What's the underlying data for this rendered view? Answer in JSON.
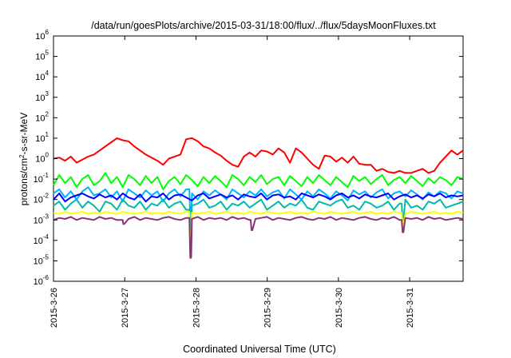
{
  "chart_data": {
    "type": "line",
    "title": "/data/run/goesPlots/archive/2015-03-31/18:00/flux/../flux/5daysMoonFluxes.txt",
    "xlabel": "Coordinated Universal Time (UTC)",
    "ylabel": {
      "pre": "protons/cm",
      "sup": "2",
      "post": "-s-sr-MeV"
    },
    "y_scale": "log",
    "ylim_exp": [
      -6,
      6
    ],
    "y_ticks": [
      {
        "base": "10",
        "exp": "-6"
      },
      {
        "base": "10",
        "exp": "-5"
      },
      {
        "base": "10",
        "exp": "-4"
      },
      {
        "base": "10",
        "exp": "-3"
      },
      {
        "base": "10",
        "exp": "-2"
      },
      {
        "base": "10",
        "exp": "-1"
      },
      {
        "base": "10",
        "exp": "0"
      },
      {
        "base": "10",
        "exp": "1"
      },
      {
        "base": "10",
        "exp": "2"
      },
      {
        "base": "10",
        "exp": "3"
      },
      {
        "base": "10",
        "exp": "4"
      },
      {
        "base": "10",
        "exp": "5"
      },
      {
        "base": "10",
        "exp": "6"
      }
    ],
    "x_ticks": [
      "2015-3-26",
      "2015-3-27",
      "2015-3-28",
      "2015-3-29",
      "2015-3-30",
      "2015-3-31"
    ],
    "xlim_days": [
      0,
      5.75
    ],
    "grid": false,
    "series": [
      {
        "color": "#ff0000",
        "log_values": [
          0.0,
          0.05,
          -0.1,
          0.1,
          -0.2,
          -0.05,
          0.1,
          0.2,
          0.4,
          0.6,
          0.8,
          1.0,
          0.9,
          0.85,
          0.6,
          0.4,
          0.2,
          0.05,
          -0.1,
          -0.3,
          0.0,
          0.1,
          0.2,
          0.95,
          1.0,
          0.85,
          0.6,
          0.5,
          0.3,
          0.15,
          -0.1,
          -0.3,
          -0.4,
          0.1,
          0.3,
          0.1,
          0.4,
          0.35,
          0.2,
          0.5,
          0.3,
          -0.2,
          0.5,
          0.3,
          0.0,
          -0.3,
          -0.5,
          0.15,
          0.1,
          -0.15,
          0.05,
          -0.2,
          0.1,
          -0.25,
          -0.3,
          -0.3,
          -0.6,
          -0.5,
          -0.65,
          -0.7,
          -0.6,
          -0.7,
          -0.7,
          -0.6,
          -0.5,
          -0.7,
          -0.6,
          -0.2,
          0.1,
          0.4,
          0.2,
          0.4
        ]
      },
      {
        "color": "#00ff00",
        "log_values": [
          -1.3,
          -0.8,
          -1.2,
          -0.9,
          -1.4,
          -1.0,
          -0.8,
          -1.3,
          -1.1,
          -0.7,
          -1.2,
          -0.9,
          -1.4,
          -0.8,
          -1.0,
          -1.3,
          -0.85,
          -1.2,
          -0.9,
          -1.5,
          -1.1,
          -0.9,
          -1.25,
          -0.8,
          -1.05,
          -1.35,
          -0.9,
          -1.2,
          -0.85,
          -1.1,
          -1.4,
          -0.8,
          -1.0,
          -1.3,
          -0.9,
          -1.15,
          -0.8,
          -1.25,
          -1.0,
          -0.9,
          -1.3,
          -0.85,
          -1.1,
          -1.35,
          -0.9,
          -1.2,
          -0.8,
          -1.05,
          -1.3,
          -0.9,
          -1.15,
          -1.4,
          -0.85,
          -1.1,
          -0.9,
          -1.25,
          -1.0,
          -0.8,
          -1.3,
          -1.05,
          -0.9,
          -1.2,
          -0.85,
          -1.1,
          -1.35,
          -0.95,
          -1.2,
          -0.9,
          -1.05,
          -1.3,
          -0.9,
          -1.0
        ]
      },
      {
        "color": "#00b4ff",
        "log_values": [
          -1.7,
          -1.5,
          -1.9,
          -1.6,
          -2.0,
          -1.6,
          -1.4,
          -1.8,
          -1.7,
          -1.5,
          -1.9,
          -1.6,
          -2.1,
          -1.5,
          -1.7,
          -1.9,
          -1.55,
          -1.8,
          -1.6,
          -2.1,
          -1.7,
          -1.5,
          -1.85,
          -1.5,
          -1.7,
          -2.0,
          -1.6,
          -1.8,
          -1.55,
          -1.75,
          -2.0,
          -1.5,
          -1.7,
          -1.9,
          -1.6,
          -1.8,
          -1.5,
          -1.85,
          -1.65,
          -1.55,
          -1.95,
          -1.5,
          -1.75,
          -2.0,
          -1.6,
          -1.85,
          -1.5,
          -1.7,
          -1.95,
          -1.6,
          -1.8,
          -2.05,
          -1.55,
          -1.75,
          -1.6,
          -1.9,
          -1.65,
          -1.5,
          -1.95,
          -1.7,
          -1.6,
          -1.85,
          -1.55,
          -1.75,
          -2.0,
          -1.65,
          -1.85,
          -1.6,
          -1.7,
          -1.95,
          -1.6,
          -1.7
        ]
      },
      {
        "color": "#0000ff",
        "log_values": [
          -2.0,
          -1.7,
          -2.1,
          -1.9,
          -1.8,
          -1.7,
          -1.85,
          -1.95,
          -1.75,
          -1.9,
          -1.8,
          -2.0,
          -1.7,
          -1.9,
          -2.0,
          -1.75,
          -2.1,
          -1.85,
          -1.9,
          -1.7,
          -2.0,
          -1.8,
          -1.75,
          -1.9,
          -2.05,
          -1.8,
          -1.7,
          -1.95,
          -1.85,
          -1.75,
          -1.9,
          -1.8,
          -2.0,
          -1.75,
          -1.85,
          -1.9,
          -1.7,
          -2.0,
          -1.8,
          -1.75,
          -1.9,
          -1.85,
          -2.0,
          -1.7,
          -1.8,
          -1.9,
          -1.75,
          -1.85,
          -2.0,
          -1.8,
          -1.7,
          -1.9,
          -1.8,
          -1.95,
          -1.75,
          -1.85,
          -1.9,
          -1.8,
          -1.7,
          -2.0,
          -1.85,
          -1.75,
          -1.9,
          -1.8,
          -1.95,
          -1.75,
          -1.85,
          -1.7,
          -1.9,
          -1.8,
          -1.85,
          -1.8
        ]
      },
      {
        "color": "#00bbaa",
        "log_values": [
          -2.3,
          -2.1,
          -2.5,
          -2.2,
          -2.0,
          -2.4,
          -2.1,
          -2.3,
          -2.6,
          -2.1,
          -2.2,
          -2.5,
          -2.0,
          -2.3,
          -2.4,
          -2.1,
          -2.5,
          -2.2,
          -2.3,
          -2.0,
          -2.4,
          -2.2,
          -2.1,
          -2.5,
          -2.3,
          -2.2,
          -2.0,
          -2.4,
          -2.3,
          -2.1,
          -2.5,
          -2.2,
          -2.3,
          -2.1,
          -2.4,
          -2.2,
          -2.0,
          -2.5,
          -2.3,
          -2.1,
          -2.4,
          -2.2,
          -2.3,
          -2.0,
          -2.4,
          -2.5,
          -2.1,
          -2.2,
          -2.3,
          -2.1,
          -2.0,
          -2.4,
          -2.3,
          -2.5,
          -2.1,
          -2.2,
          -2.4,
          -2.3,
          -2.1,
          -2.5,
          -2.2,
          -2.0,
          -2.4,
          -2.3,
          -2.5,
          -2.1,
          -2.2,
          -2.0,
          -2.4,
          -2.3,
          -2.2,
          -2.1
        ]
      },
      {
        "color": "#ffff00",
        "log_values": [
          -2.65,
          -2.7,
          -2.6,
          -2.7,
          -2.65,
          -2.6,
          -2.7,
          -2.65,
          -2.7,
          -2.6,
          -2.65,
          -2.7,
          -2.6,
          -2.65,
          -2.7,
          -2.65,
          -2.6,
          -2.7,
          -2.65,
          -2.7,
          -2.6,
          -2.65,
          -2.7,
          -2.6,
          -2.65,
          -2.7,
          -2.65,
          -2.6,
          -2.7,
          -2.65,
          -2.6,
          -2.7,
          -2.65,
          -2.7,
          -2.6,
          -2.65,
          -2.7,
          -2.6,
          -2.65,
          -2.7,
          -2.65,
          -2.6,
          -2.7,
          -2.65,
          -2.7,
          -2.6,
          -2.65,
          -2.7,
          -2.6,
          -2.65,
          -2.7,
          -2.65,
          -2.6,
          -2.7,
          -2.65,
          -2.6,
          -2.7,
          -2.65,
          -2.7,
          -2.6,
          -2.65,
          -2.7,
          -2.6,
          -2.65,
          -2.7,
          -2.65,
          -2.6,
          -2.7,
          -2.65,
          -2.7,
          -2.6,
          -2.65
        ]
      },
      {
        "color": "#883377",
        "log_values": [
          -3.0,
          -2.9,
          -2.95,
          -2.85,
          -3.0,
          -2.9,
          -2.95,
          -3.0,
          -2.85,
          -2.95,
          -2.9,
          -3.0,
          -2.9,
          -2.95,
          -2.85,
          -3.0,
          -2.9,
          -2.95,
          -3.0,
          -2.9,
          -2.85,
          -2.95,
          -3.0,
          -2.9,
          -2.95,
          -2.85,
          -3.0,
          -2.9,
          -2.95,
          -2.9,
          -3.0,
          -2.85,
          -2.95,
          -2.9,
          -3.0,
          -2.95,
          -2.9,
          -2.85,
          -3.0,
          -2.9,
          -2.95,
          -3.0,
          -2.9,
          -2.85,
          -2.95,
          -3.0,
          -2.9,
          -2.95,
          -2.85,
          -3.0,
          -2.9,
          -2.95,
          -3.0,
          -2.9,
          -2.85,
          -2.95,
          -3.0,
          -2.9,
          -2.95,
          -2.85,
          -3.0,
          -2.9,
          -2.95,
          -2.9,
          -3.0,
          -2.85,
          -2.95,
          -2.9,
          -3.0,
          -2.95,
          -2.9,
          -2.95
        ]
      }
    ],
    "dips": [
      {
        "day": 1.92,
        "min_log": {
          "#883377": -4.85,
          "#ffff00": -4.5,
          "#00bbaa": -3.5,
          "#00b4ff": -3.0
        }
      },
      {
        "day": 4.9,
        "min_log": {
          "#883377": -3.6,
          "#ffff00": -3.3,
          "#00bbaa": -3.0
        }
      },
      {
        "day": 2.78,
        "min_log": {
          "#883377": -3.5
        }
      },
      {
        "day": 0.98,
        "min_log": {
          "#883377": -3.2
        }
      }
    ]
  }
}
